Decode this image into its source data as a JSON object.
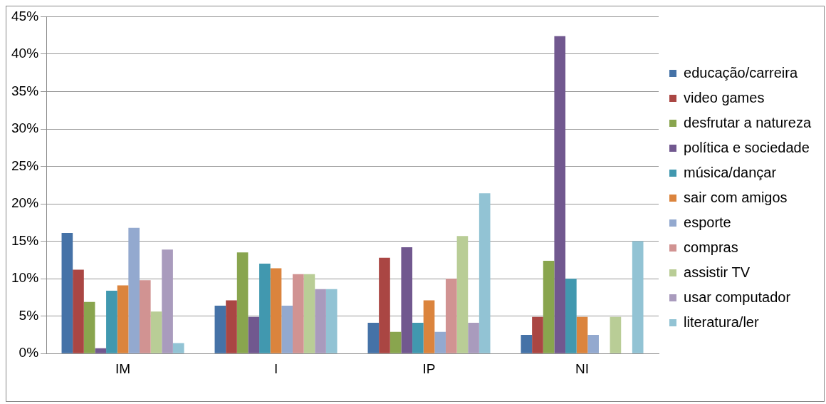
{
  "chart_data": {
    "type": "bar",
    "categories": [
      "IM",
      "I",
      "IP",
      "NI"
    ],
    "series": [
      {
        "name": "educação/carreira",
        "color": "#4572a7",
        "values": [
          16.1,
          6.4,
          4.1,
          2.5
        ]
      },
      {
        "name": "video games",
        "color": "#aa4643",
        "values": [
          11.2,
          7.1,
          12.8,
          4.9
        ]
      },
      {
        "name": "desfrutar a natureza",
        "color": "#89a54e",
        "values": [
          6.9,
          13.5,
          2.9,
          12.4
        ]
      },
      {
        "name": "política e sociedade",
        "color": "#71588f",
        "values": [
          0.7,
          4.9,
          14.2,
          42.4
        ]
      },
      {
        "name": "música/dançar",
        "color": "#4198af",
        "values": [
          8.4,
          12.0,
          4.1,
          10.0
        ]
      },
      {
        "name": "sair com amigos",
        "color": "#db843d",
        "values": [
          9.1,
          11.4,
          7.1,
          4.9
        ]
      },
      {
        "name": "esporte",
        "color": "#93a9cf",
        "values": [
          16.8,
          6.4,
          2.9,
          2.5
        ]
      },
      {
        "name": "compras",
        "color": "#d19392",
        "values": [
          9.8,
          10.6,
          10.0,
          0
        ]
      },
      {
        "name": "assistir TV",
        "color": "#b9cd96",
        "values": [
          5.6,
          10.6,
          15.7,
          4.9
        ]
      },
      {
        "name": "usar computador",
        "color": "#a99bbd",
        "values": [
          13.9,
          8.6,
          4.1,
          0
        ]
      },
      {
        "name": "literatura/ler",
        "color": "#92c3d4",
        "values": [
          1.4,
          8.6,
          21.4,
          15.0
        ]
      }
    ],
    "ylim": [
      0,
      45
    ],
    "yticks": [
      {
        "value": 0,
        "label": "0%"
      },
      {
        "value": 5,
        "label": "5%"
      },
      {
        "value": 10,
        "label": "10%"
      },
      {
        "value": 15,
        "label": "15%"
      },
      {
        "value": 20,
        "label": "20%"
      },
      {
        "value": 25,
        "label": "25%"
      },
      {
        "value": 30,
        "label": "30%"
      },
      {
        "value": 35,
        "label": "35%"
      },
      {
        "value": 40,
        "label": "40%"
      },
      {
        "value": 45,
        "label": "45%"
      }
    ],
    "grid": "y",
    "legend": "right"
  }
}
